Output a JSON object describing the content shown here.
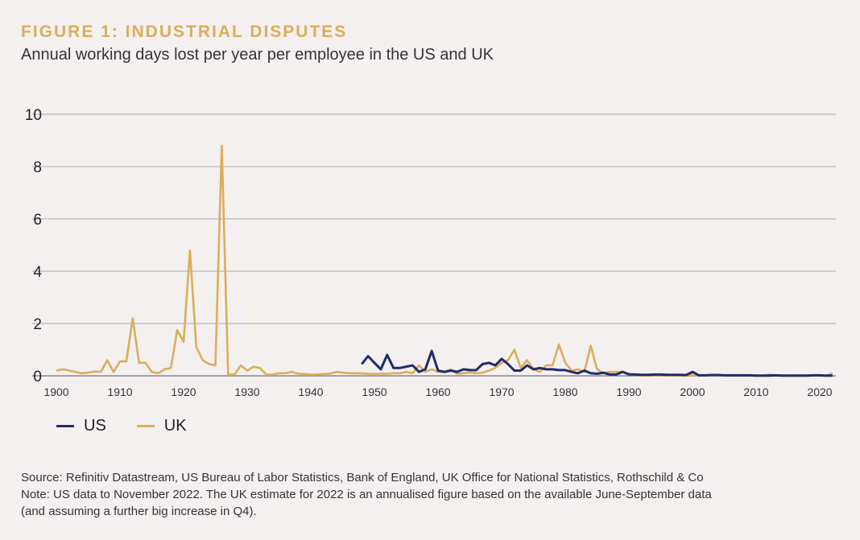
{
  "title": "FIGURE 1: INDUSTRIAL DISPUTES",
  "subtitle": "Annual working days lost per year per employee in the US and UK",
  "notes": [
    "Source: Refinitiv Datastream, US Bureau of Labor Statistics, Bank of England, UK Office for National Statistics, Rothschild & Co",
    "Note: US data to November 2022. The UK estimate for 2022 is an annualised figure based on the available June-September data",
    "(and assuming a further big increase in Q4)."
  ],
  "chart_data": {
    "type": "line",
    "xlim": [
      1900,
      2022
    ],
    "ylim": [
      0,
      10
    ],
    "yticks": [
      "0",
      "2",
      "4",
      "6",
      "8",
      "10"
    ],
    "xticks": [
      "1900",
      "1910",
      "1920",
      "1930",
      "1940",
      "1950",
      "1960",
      "1970",
      "1980",
      "1990",
      "2000",
      "2010",
      "2020"
    ],
    "grid": "horizontal",
    "legend": "bottom-left",
    "series": [
      {
        "name": "US",
        "color": "#1f2d6b",
        "start": 1948,
        "values": [
          0.45,
          0.75,
          0.5,
          0.25,
          0.8,
          0.3,
          0.3,
          0.35,
          0.4,
          0.15,
          0.25,
          0.95,
          0.2,
          0.15,
          0.2,
          0.15,
          0.25,
          0.22,
          0.22,
          0.45,
          0.5,
          0.4,
          0.65,
          0.45,
          0.2,
          0.2,
          0.4,
          0.25,
          0.3,
          0.25,
          0.25,
          0.22,
          0.22,
          0.15,
          0.1,
          0.2,
          0.1,
          0.08,
          0.12,
          0.05,
          0.05,
          0.15,
          0.06,
          0.05,
          0.04,
          0.04,
          0.05,
          0.05,
          0.04,
          0.04,
          0.04,
          0.03,
          0.15,
          0.02,
          0.02,
          0.03,
          0.03,
          0.02,
          0.02,
          0.02,
          0.02,
          0.02,
          0.01,
          0.01,
          0.01,
          0.02,
          0.01,
          0.01,
          0.01,
          0.01,
          0.01,
          0.02,
          0.02,
          0.01,
          0.01
        ]
      },
      {
        "name": "UK",
        "color": "#d9ae5c",
        "start": 1900,
        "values": [
          0.2,
          0.25,
          0.2,
          0.15,
          0.1,
          0.12,
          0.17,
          0.15,
          0.6,
          0.15,
          0.55,
          0.55,
          2.2,
          0.5,
          0.5,
          0.15,
          0.1,
          0.25,
          0.3,
          1.75,
          1.3,
          4.8,
          1.1,
          0.6,
          0.45,
          0.4,
          8.8,
          0.05,
          0.05,
          0.4,
          0.2,
          0.35,
          0.3,
          0.05,
          0.05,
          0.1,
          0.1,
          0.15,
          0.08,
          0.07,
          0.05,
          0.05,
          0.07,
          0.08,
          0.15,
          0.12,
          0.1,
          0.1,
          0.09,
          0.08,
          0.07,
          0.08,
          0.08,
          0.1,
          0.1,
          0.15,
          0.1,
          0.4,
          0.15,
          0.25,
          0.15,
          0.15,
          0.25,
          0.08,
          0.1,
          0.13,
          0.1,
          0.12,
          0.2,
          0.3,
          0.5,
          0.6,
          1.0,
          0.3,
          0.6,
          0.25,
          0.15,
          0.4,
          0.4,
          1.2,
          0.5,
          0.2,
          0.25,
          0.15,
          1.15,
          0.25,
          0.1,
          0.15,
          0.15,
          0.15,
          0.08,
          0.03,
          0.01,
          0.02,
          0.01,
          0.02,
          0.01,
          0.02,
          0.01,
          0.01,
          0.02,
          0.02,
          0.01,
          0.01,
          0.01,
          0.01,
          0.02,
          0.01,
          0.01,
          0.01,
          0.02,
          0.01,
          0.05,
          0.02,
          0.02,
          0.01,
          0.02,
          0.02,
          0.02,
          0.01,
          0.01,
          0.01,
          0.1
        ]
      }
    ]
  }
}
